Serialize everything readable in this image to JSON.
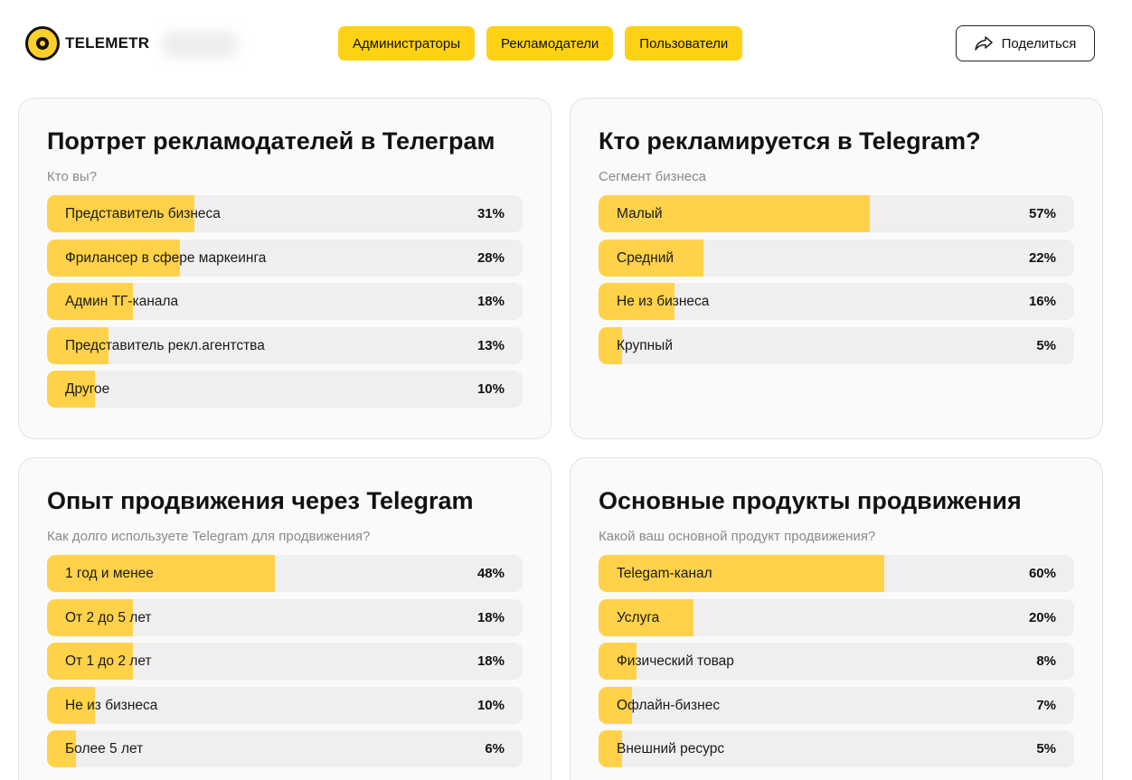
{
  "brand": {
    "name": "TELEMETR"
  },
  "nav": [
    {
      "label": "Администраторы"
    },
    {
      "label": "Рекламодатели"
    },
    {
      "label": "Пользователи"
    }
  ],
  "share": {
    "label": "Поделиться"
  },
  "colors": {
    "accent": "#ffd115",
    "bar_fill": "#ffd24a",
    "bar_bg": "#efefef"
  },
  "cards": [
    {
      "title": "Портрет рекламодателей в Телеграм",
      "subtitle": "Кто вы?",
      "rows": [
        {
          "label": "Представитель бизнеса",
          "pct": "31%",
          "value": 31
        },
        {
          "label": "Фрилансер в сфере маркеинга",
          "pct": "28%",
          "value": 28
        },
        {
          "label": "Админ ТГ-канала",
          "pct": "18%",
          "value": 18
        },
        {
          "label": "Представитель рекл.агентства",
          "pct": "13%",
          "value": 13
        },
        {
          "label": "Другое",
          "pct": "10%",
          "value": 10
        }
      ]
    },
    {
      "title": "Кто рекламируется в Telegram?",
      "subtitle": "Сегмент бизнеса",
      "rows": [
        {
          "label": "Малый",
          "pct": "57%",
          "value": 57
        },
        {
          "label": "Средний",
          "pct": "22%",
          "value": 22
        },
        {
          "label": "Не из бизнеса",
          "pct": "16%",
          "value": 16
        },
        {
          "label": "Крупный",
          "pct": "5%",
          "value": 5
        }
      ]
    },
    {
      "title": "Опыт продвижения через Telegram",
      "subtitle": "Как долго используете Telegram для продвижения?",
      "rows": [
        {
          "label": "1 год и менее",
          "pct": "48%",
          "value": 48
        },
        {
          "label": "От 2 до 5 лет",
          "pct": "18%",
          "value": 18
        },
        {
          "label": "От 1 до 2 лет",
          "pct": "18%",
          "value": 18
        },
        {
          "label": "Не из бизнеса",
          "pct": "10%",
          "value": 10
        },
        {
          "label": "Более 5 лет",
          "pct": "6%",
          "value": 6
        }
      ]
    },
    {
      "title": "Основные продукты продвижения",
      "subtitle": "Какой ваш основной продукт продвижения?",
      "rows": [
        {
          "label": "Telegam-канал",
          "pct": "60%",
          "value": 60
        },
        {
          "label": "Услуга",
          "pct": "20%",
          "value": 20
        },
        {
          "label": "Физический товар",
          "pct": "8%",
          "value": 8
        },
        {
          "label": "Офлайн-бизнес",
          "pct": "7%",
          "value": 7
        },
        {
          "label": "Внешний ресурс",
          "pct": "5%",
          "value": 5
        }
      ]
    }
  ]
}
